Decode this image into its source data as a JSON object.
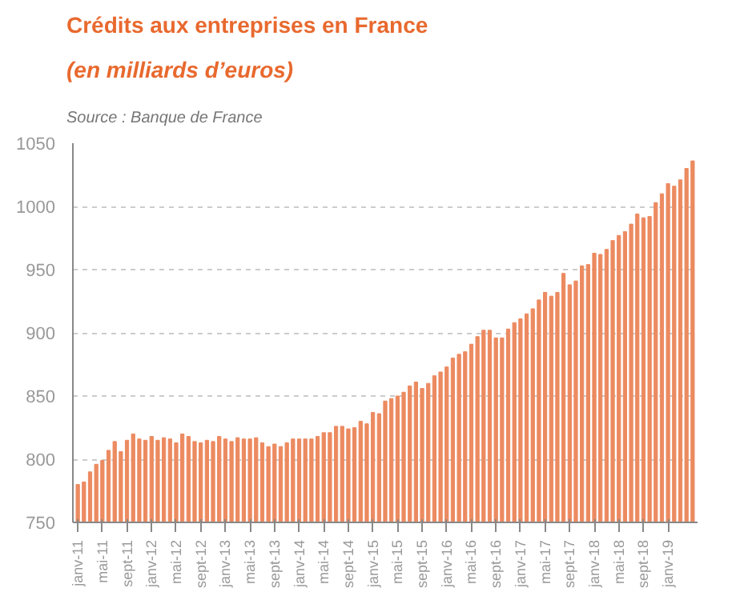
{
  "chart_data": {
    "type": "bar",
    "title": "Crédits aux entreprises en France",
    "subtitle": "(en milliards d’euros)",
    "annotations": [
      "Source : Banque de France"
    ],
    "categories": [
      "janv-11",
      null,
      null,
      null,
      "mai-11",
      null,
      null,
      null,
      "sept-11",
      null,
      null,
      null,
      "janv-12",
      null,
      null,
      null,
      "mai-12",
      null,
      null,
      null,
      "sept-12",
      null,
      null,
      null,
      "janv-13",
      null,
      null,
      null,
      "mai-13",
      null,
      null,
      null,
      "sept-13",
      null,
      null,
      null,
      "janv-14",
      null,
      null,
      null,
      "mai-14",
      null,
      null,
      null,
      "sept-14",
      null,
      null,
      null,
      "janv-15",
      null,
      null,
      null,
      "mai-15",
      null,
      null,
      null,
      "sept-15",
      null,
      null,
      null,
      "janv-16",
      null,
      null,
      null,
      "mai-16",
      null,
      null,
      null,
      "sept-16",
      null,
      null,
      null,
      "janv-17",
      null,
      null,
      null,
      "mai-17",
      null,
      null,
      null,
      "sept-17",
      null,
      null,
      null,
      "janv-18",
      null,
      null,
      null,
      "mai-18",
      null,
      null,
      null,
      "sept-18",
      null,
      null,
      null,
      "janv-19",
      null,
      null,
      null,
      null
    ],
    "values": [
      780,
      782,
      790,
      796,
      799,
      807,
      814,
      806,
      815,
      820,
      816,
      815,
      818,
      815,
      817,
      816,
      813,
      820,
      818,
      814,
      813,
      815,
      814,
      818,
      816,
      814,
      817,
      816,
      816,
      817,
      813,
      810,
      812,
      810,
      813,
      816,
      816,
      816,
      816,
      818,
      821,
      821,
      826,
      826,
      824,
      825,
      830,
      828,
      837,
      836,
      846,
      848,
      850,
      853,
      858,
      861,
      856,
      860,
      866,
      869,
      873,
      880,
      883,
      885,
      891,
      897,
      902,
      902,
      896,
      896,
      903,
      908,
      911,
      915,
      919,
      926,
      932,
      929,
      932,
      947,
      938,
      941,
      953,
      954,
      963,
      962,
      966,
      973,
      977,
      980,
      986,
      994,
      991,
      992,
      1003,
      1010,
      1018,
      1016,
      1021,
      1030,
      1036
    ],
    "color": "#ec8a60",
    "ylim": [
      750,
      1050
    ],
    "yticks": [
      750,
      800,
      850,
      900,
      950,
      1000,
      1050
    ],
    "grid": "y"
  }
}
